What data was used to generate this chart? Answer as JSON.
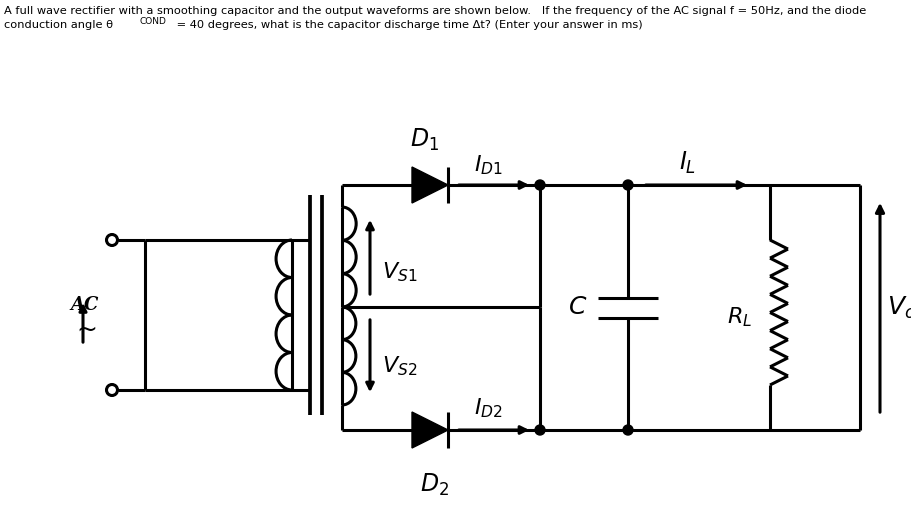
{
  "bg_color": "#ffffff",
  "line_color": "#000000",
  "lw": 2.2,
  "title_line1": "A full wave rectifier with a smoothing capacitor and the output waveforms are shown below.   If the frequency of the AC signal f = 50Hz, and the diode",
  "title_line2_parts": [
    {
      "text": "conduction angle θ",
      "bold": false
    },
    {
      "text": "COND",
      "bold": false,
      "sub": true
    },
    {
      "text": " = 40 degrees, what is the capacitor discharge time Δt? (Enter your answer in ms)",
      "bold": false
    }
  ]
}
